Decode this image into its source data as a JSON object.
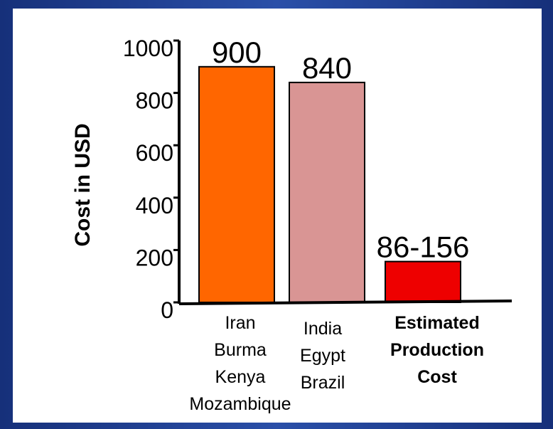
{
  "chart_data": {
    "type": "bar",
    "ylabel": "Cost in USD",
    "ylim": [
      0,
      1000
    ],
    "yticks": [
      0,
      200,
      400,
      600,
      800,
      1000
    ],
    "categories": [
      {
        "lines": [
          "Iran",
          "Burma",
          "Kenya",
          "Mozambique"
        ],
        "bold": false
      },
      {
        "lines": [
          "India",
          "Egypt",
          "Brazil"
        ],
        "bold": false
      },
      {
        "lines": [
          "Estimated",
          "Production",
          "Cost"
        ],
        "bold": true
      }
    ],
    "values": [
      900,
      840,
      156
    ],
    "value_labels": [
      "900",
      "840",
      "86-156"
    ],
    "bar_colors": [
      "#ff6600",
      "#d99594",
      "#ee0000"
    ],
    "grid": false
  }
}
